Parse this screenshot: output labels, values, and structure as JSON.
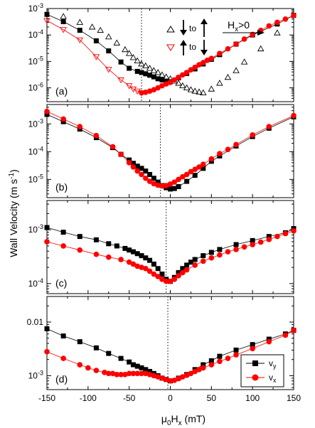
{
  "figure": {
    "ylabel": "Wall Velocity (m s",
    "ylabel_sup": "-1",
    "ylabel_close": ")",
    "xlabel_prefix": "μ",
    "xlabel_sub0": "0",
    "xlabel_mid": "H",
    "xlabel_subx": "x",
    "xlabel_unit": " (mT)",
    "xlim": [
      -150,
      150
    ],
    "xticks": [
      -150,
      -100,
      -50,
      0,
      50,
      100,
      150
    ],
    "xtick_labels": [
      "-150",
      "-100",
      "-50",
      "0",
      "50",
      "100",
      "150"
    ]
  },
  "annotations": {
    "arrow_to_1": "to",
    "arrow_to_2": "to",
    "hx_label": "H",
    "hx_sub": "x",
    "hx_cond": ">0"
  },
  "legend": {
    "vy": "v",
    "vy_sub": "y",
    "vx": "v",
    "vx_sub": "x"
  },
  "colors": {
    "red": "#ff0000",
    "black": "#000000"
  },
  "chart_data": [
    {
      "type": "scatter",
      "panel": "(a)",
      "scale": "log",
      "ylim": [
        3e-07,
        0.001
      ],
      "ytick_values": [
        1e-06,
        1e-05,
        0.0001,
        0.001
      ],
      "ytick_labels": [
        {
          "base": "10",
          "exp": "-6"
        },
        {
          "base": "10",
          "exp": "-5"
        },
        {
          "base": "10",
          "exp": "-4"
        },
        {
          "base": "10",
          "exp": "-3"
        }
      ],
      "vline_x": -35,
      "series": [
        {
          "marker": "filled-square",
          "color": "#000000",
          "line": true,
          "x": [
            -150,
            -130,
            -110,
            -90,
            -75,
            -60,
            -50,
            -40,
            -35,
            -30,
            -25,
            -20,
            -15,
            -10,
            -5,
            0,
            10,
            20,
            30,
            40,
            50,
            60,
            80,
            100,
            130,
            150
          ],
          "y": [
            0.0006,
            0.00032,
            0.00015,
            6e-05,
            2.5e-05,
            9.5e-06,
            5.5e-06,
            4.2e-06,
            3.8e-06,
            3.4e-06,
            3e-06,
            2.6e-06,
            2.2e-06,
            2e-06,
            1.8e-06,
            1.7e-06,
            2.4e-06,
            3.5e-06,
            5.2e-06,
            8e-06,
            1.2e-05,
            1.8e-05,
            4.5e-05,
            0.0001,
            0.00026,
            0.00055
          ]
        },
        {
          "marker": "open-triangle-up",
          "color": "#000000",
          "line": false,
          "x": [
            -130,
            -110,
            -95,
            -85,
            -75,
            -65,
            -55,
            -50,
            -45,
            -40,
            -35,
            -30,
            -25,
            -20,
            -15,
            -10,
            -5,
            0,
            5,
            10,
            15,
            20,
            25,
            30,
            35,
            40,
            50,
            60,
            70,
            80,
            90,
            110,
            130
          ],
          "y": [
            0.0005,
            0.0003,
            0.0002,
            0.00015,
            8.5e-05,
            5e-05,
            2.8e-05,
            2e-05,
            1.4e-05,
            1.05e-05,
            8e-06,
            6.8e-06,
            5.5e-06,
            4.5e-06,
            3.8e-06,
            3.1e-06,
            2.6e-06,
            2.2e-06,
            1.8e-06,
            1.5e-06,
            1.2e-06,
            1e-06,
            8.5e-07,
            7.5e-07,
            7e-07,
            6.5e-07,
            9e-07,
            1.5e-06,
            2.5e-06,
            4.5e-06,
            9.5e-06,
            3e-05,
            0.00012
          ]
        },
        {
          "marker": "filled-circle",
          "color": "#ff0000",
          "line": true,
          "x": [
            -35,
            -30,
            -25,
            -20,
            -15,
            -10,
            -5,
            0,
            5,
            10,
            15,
            20,
            25,
            30,
            35,
            40,
            45,
            50,
            60,
            70,
            80,
            90,
            100,
            110,
            120,
            130,
            140,
            150
          ],
          "y": [
            6.5e-07,
            6.8e-07,
            7.5e-07,
            8.5e-07,
            1e-06,
            1.2e-06,
            1.4e-06,
            1.6e-06,
            2e-06,
            2.5e-06,
            3.1e-06,
            3.8e-06,
            4.8e-06,
            6e-06,
            7.5e-06,
            9e-06,
            1.1e-05,
            1.3e-05,
            2e-05,
            3e-05,
            4.5e-05,
            7e-05,
            0.000105,
            0.00015,
            0.00022,
            0.0003,
            0.0004,
            0.00055
          ]
        },
        {
          "marker": "open-triangle-down",
          "color": "#ff0000",
          "line": true,
          "x": [
            -150,
            -130,
            -110,
            -90,
            -75,
            -60,
            -50,
            -45,
            -40,
            -35
          ],
          "y": [
            0.00035,
            0.00016,
            6.5e-05,
            1.5e-05,
            5e-06,
            2e-06,
            1.2e-06,
            9e-07,
            7.5e-07,
            6.5e-07
          ]
        }
      ]
    },
    {
      "type": "scatter",
      "panel": "(b)",
      "scale": "log",
      "ylim": [
        2.2e-06,
        0.005
      ],
      "ytick_values": [
        1e-05,
        0.0001,
        0.001
      ],
      "ytick_labels": [
        {
          "base": "10",
          "exp": "-5"
        },
        {
          "base": "10",
          "exp": "-4"
        },
        {
          "base": "10",
          "exp": "-3"
        }
      ],
      "vline_x": -12,
      "series": [
        {
          "marker": "filled-square",
          "color": "#000000",
          "line": true,
          "x": [
            -150,
            -130,
            -110,
            -90,
            -70,
            -60,
            -50,
            -45,
            -40,
            -35,
            -30,
            -25,
            -20,
            -15,
            -10,
            -5,
            0,
            5,
            10,
            20,
            30,
            40,
            50,
            60,
            80,
            100,
            120,
            150
          ],
          "y": [
            0.0022,
            0.0012,
            0.00065,
            0.00032,
            0.00014,
            8e-05,
            5e-05,
            3.8e-05,
            3e-05,
            2.5e-05,
            2e-05,
            1.5e-05,
            1.1e-05,
            8e-06,
            6e-06,
            5e-06,
            4.5e-06,
            4.7e-06,
            5.5e-06,
            8.5e-06,
            1.4e-05,
            2.5e-05,
            4.5e-05,
            7e-05,
            0.00016,
            0.00035,
            0.0007,
            0.0018
          ]
        },
        {
          "marker": "filled-circle",
          "color": "#ff0000",
          "line": true,
          "x": [
            -150,
            -130,
            -110,
            -90,
            -70,
            -60,
            -50,
            -45,
            -40,
            -35,
            -30,
            -25,
            -20,
            -15,
            -10,
            -5,
            0,
            5,
            10,
            15,
            20,
            25,
            30,
            35,
            40,
            50,
            60,
            70,
            80,
            100,
            120,
            150
          ],
          "y": [
            0.0028,
            0.0015,
            0.0008,
            0.00038,
            0.00015,
            8e-05,
            4e-05,
            2.8e-05,
            2e-05,
            1.5e-05,
            1.1e-05,
            8.5e-06,
            7e-06,
            6.2e-06,
            5.8e-06,
            6e-06,
            6.8e-06,
            8e-06,
            1e-05,
            1.25e-05,
            1.5e-05,
            1.9e-05,
            2.3e-05,
            2.8e-05,
            3.5e-05,
            5.5e-05,
            8.5e-05,
            0.00012,
            0.00018,
            0.0004,
            0.0008,
            0.002
          ]
        }
      ]
    },
    {
      "type": "scatter",
      "panel": "(c)",
      "scale": "log",
      "ylim": [
        6.5e-05,
        0.0035
      ],
      "ytick_values": [
        0.0001,
        0.001
      ],
      "ytick_labels": [
        {
          "base": "10",
          "exp": "-4"
        },
        {
          "base": "10",
          "exp": "-3"
        }
      ],
      "vline_x": -5,
      "series": [
        {
          "marker": "filled-square",
          "color": "#000000",
          "line": true,
          "x": [
            -150,
            -130,
            -110,
            -90,
            -75,
            -65,
            -55,
            -50,
            -45,
            -40,
            -35,
            -30,
            -25,
            -20,
            -15,
            -10,
            -5,
            0,
            5,
            10,
            15,
            20,
            25,
            30,
            40,
            50,
            60,
            80,
            100,
            120,
            140,
            150
          ],
          "y": [
            0.0011,
            0.0009,
            0.00075,
            0.00065,
            0.00055,
            0.0005,
            0.00045,
            0.00042,
            0.00039,
            0.00036,
            0.00033,
            0.0003,
            0.00027,
            0.00023,
            0.00019,
            0.00015,
            0.00012,
            0.00011,
            0.00013,
            0.00016,
            0.00019,
            0.00022,
            0.00025,
            0.00028,
            0.00033,
            0.00038,
            0.00043,
            0.00053,
            0.00063,
            0.00075,
            0.00088,
            0.00105
          ]
        },
        {
          "marker": "filled-circle",
          "color": "#ff0000",
          "line": true,
          "x": [
            -150,
            -130,
            -110,
            -90,
            -75,
            -60,
            -50,
            -45,
            -40,
            -35,
            -30,
            -25,
            -20,
            -15,
            -10,
            -5,
            0,
            5,
            10,
            15,
            20,
            30,
            40,
            50,
            60,
            70,
            80,
            90,
            100,
            110,
            120,
            130,
            140,
            150
          ],
          "y": [
            0.0006,
            0.0005,
            0.00042,
            0.00035,
            0.00031,
            0.00028,
            0.00025,
            0.00023,
            0.00021,
            0.0002,
            0.00019,
            0.00017,
            0.00015,
            0.000135,
            0.00012,
            0.00011,
            0.00011,
            0.00012,
            0.00014,
            0.00016,
            0.00018,
            0.00022,
            0.00026,
            0.0003,
            0.00034,
            0.00039,
            0.00043,
            0.00048,
            0.00053,
            0.00059,
            0.00066,
            0.00075,
            0.00085,
            0.00095
          ]
        }
      ]
    },
    {
      "type": "scatter",
      "panel": "(d)",
      "scale": "log",
      "ylim": [
        0.00055,
        0.03
      ],
      "ytick_values": [
        0.001,
        0.01
      ],
      "ytick_labels": [
        {
          "base": "10",
          "exp": "-3",
          "plain": ""
        },
        {
          "base": "0.01",
          "exp": "",
          "plain": "0.01"
        }
      ],
      "vline_x": -3,
      "series": [
        {
          "marker": "filled-square",
          "color": "#000000",
          "line": true,
          "x": [
            -150,
            -130,
            -110,
            -90,
            -75,
            -60,
            -50,
            -45,
            -40,
            -35,
            -30,
            -25,
            -20,
            -15,
            -10,
            -5,
            0,
            10,
            20,
            30,
            40,
            50,
            60,
            80,
            100,
            120,
            140,
            150
          ],
          "y": [
            0.0075,
            0.0055,
            0.0043,
            0.0033,
            0.0026,
            0.0021,
            0.0018,
            0.0016,
            0.0015,
            0.0014,
            0.0013,
            0.0012,
            0.0011,
            0.001,
            0.0009,
            0.00085,
            0.0008,
            0.0009,
            0.00105,
            0.0013,
            0.0016,
            0.0019,
            0.0023,
            0.003,
            0.0038,
            0.0048,
            0.006,
            0.007
          ]
        },
        {
          "marker": "filled-circle",
          "color": "#ff0000",
          "line": true,
          "x": [
            -150,
            -130,
            -110,
            -100,
            -90,
            -80,
            -75,
            -70,
            -65,
            -60,
            -55,
            -50,
            -45,
            -40,
            -35,
            -30,
            -25,
            -20,
            -15,
            -10,
            -5,
            0,
            5,
            10,
            15,
            20,
            25,
            30,
            35,
            40,
            50,
            60,
            70,
            80,
            100,
            120,
            140,
            150
          ],
          "y": [
            0.0028,
            0.0021,
            0.0016,
            0.0014,
            0.00125,
            0.00115,
            0.0011,
            0.0011,
            0.00105,
            0.00105,
            0.00105,
            0.0011,
            0.0011,
            0.0011,
            0.0011,
            0.0011,
            0.00105,
            0.001,
            0.00095,
            0.0009,
            0.00085,
            0.0008,
            0.00082,
            0.00088,
            0.00095,
            0.00102,
            0.0011,
            0.0012,
            0.0013,
            0.0014,
            0.0016,
            0.00185,
            0.0021,
            0.00245,
            0.0032,
            0.0043,
            0.0057,
            0.007
          ]
        }
      ]
    }
  ]
}
